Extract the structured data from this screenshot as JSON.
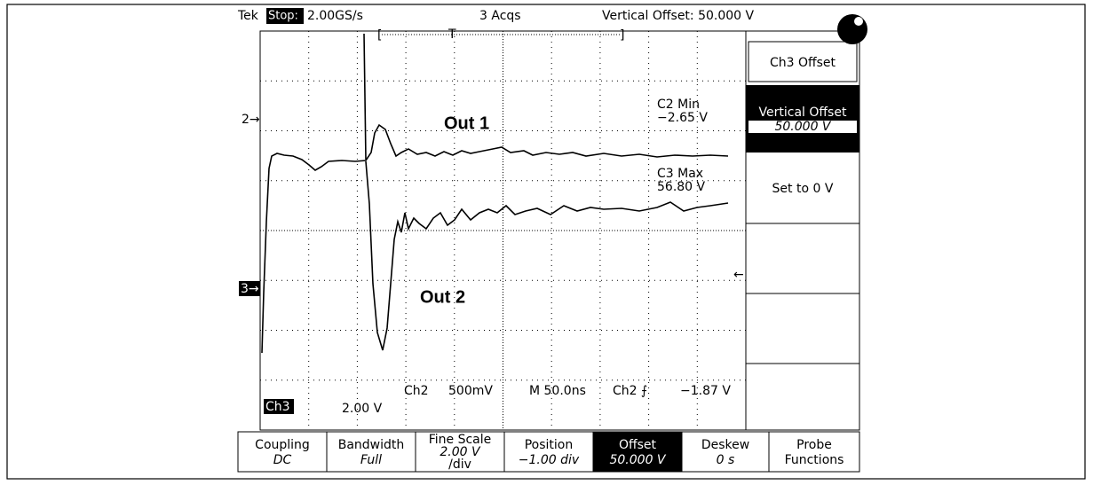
{
  "header": {
    "brand": "Tek",
    "state": "Stop:",
    "rate": "2.00GS/s",
    "acqs": "3 Acqs",
    "status": "Vertical Offset: 50.000 V",
    "bracket_left": "[",
    "trigger": "T",
    "bracket_right": "]"
  },
  "markers": {
    "ch2": "2→",
    "ch3": "3→",
    "trigger_level": "←"
  },
  "annotations": {
    "out1": "Out 1",
    "out2": "Out 2"
  },
  "measurements": [
    {
      "label": "C2 Min",
      "value": "−2.65 V"
    },
    {
      "label": "C3 Max",
      "value": "56.80 V"
    }
  ],
  "readout": {
    "ch3": "Ch3",
    "ch3_scale": "2.00 V",
    "ch2": "Ch2",
    "ch2_scale": "500mV",
    "timebase": "M 50.0ns",
    "trigger": "Ch2 ⨍",
    "trigger_level": "−1.87 V"
  },
  "side_menu": {
    "title": "Ch3 Offset",
    "item_label": "Vertical Offset",
    "item_value": "50.000 V",
    "reset": "Set to 0 V"
  },
  "bottom_menu": [
    {
      "label": "Coupling",
      "value": "DC"
    },
    {
      "label": "Bandwidth",
      "value": "Full"
    },
    {
      "label": "Fine Scale",
      "value": "2.00 V",
      "unit": "/div"
    },
    {
      "label": "Position",
      "value": "−1.00 div"
    },
    {
      "label": "Offset",
      "value": "50.000 V",
      "selected": true
    },
    {
      "label": "Deskew",
      "value": "0 s"
    },
    {
      "label": "Probe",
      "value": "Functions"
    }
  ]
}
